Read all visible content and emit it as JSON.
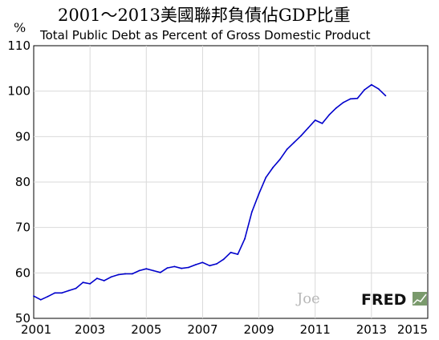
{
  "chart_data": {
    "type": "line",
    "title": "2001～2013美國聯邦負債佔GDP比重",
    "subtitle": "Total Public Debt as Percent of Gross Domestic Product",
    "ylabel": "%",
    "xlabel": "",
    "xlim": [
      2001,
      2015
    ],
    "ylim": [
      50,
      110
    ],
    "x_ticks": [
      "2001",
      "2003",
      "2005",
      "2007",
      "2009",
      "2011",
      "2013",
      "2015"
    ],
    "y_ticks": [
      "50",
      "60",
      "70",
      "80",
      "90",
      "100",
      "110"
    ],
    "grid": true,
    "series": [
      {
        "color": "#0000cc",
        "x": [
          2001.0,
          2001.25,
          2001.5,
          2001.75,
          2002.0,
          2002.25,
          2002.5,
          2002.75,
          2003.0,
          2003.25,
          2003.5,
          2003.75,
          2004.0,
          2004.25,
          2004.5,
          2004.75,
          2005.0,
          2005.25,
          2005.5,
          2005.75,
          2006.0,
          2006.25,
          2006.5,
          2006.75,
          2007.0,
          2007.25,
          2007.5,
          2007.75,
          2008.0,
          2008.25,
          2008.5,
          2008.75,
          2009.0,
          2009.25,
          2009.5,
          2009.75,
          2010.0,
          2010.25,
          2010.5,
          2010.75,
          2011.0,
          2011.25,
          2011.5,
          2011.75,
          2012.0,
          2012.25,
          2012.5,
          2012.75,
          2013.0,
          2013.25,
          2013.5
        ],
        "y": [
          54.9,
          54.1,
          54.8,
          55.6,
          55.6,
          56.1,
          56.6,
          57.9,
          57.6,
          58.8,
          58.3,
          59.1,
          59.6,
          59.8,
          59.8,
          60.5,
          60.9,
          60.5,
          60.1,
          61.1,
          61.4,
          61.0,
          61.2,
          61.8,
          62.3,
          61.6,
          62.0,
          63.0,
          64.5,
          64.1,
          67.5,
          73.4,
          77.4,
          81.0,
          83.2,
          85.0,
          87.2,
          88.7,
          90.2,
          91.9,
          93.6,
          92.9,
          94.8,
          96.3,
          97.5,
          98.3,
          98.4,
          100.3,
          101.4,
          100.5,
          99.0
        ]
      }
    ]
  },
  "watermark": {
    "text": "Joe"
  },
  "logo": {
    "text": "FRED"
  }
}
